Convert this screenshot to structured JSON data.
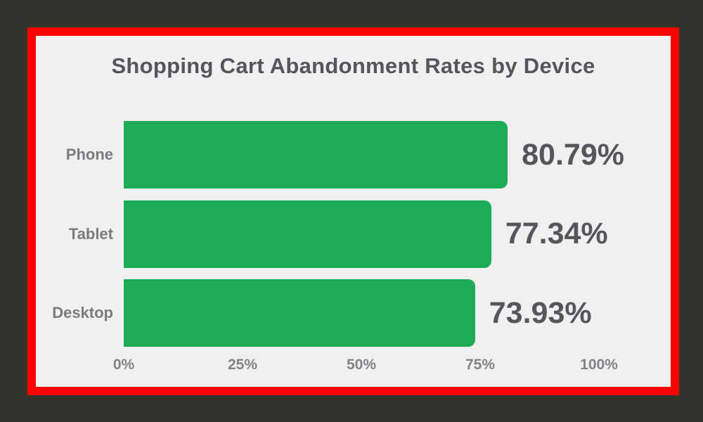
{
  "title": "Shopping Cart Abandonment Rates by Device",
  "colors": {
    "background": "#33332E",
    "frame": "#FE0000",
    "panel": "#F0F0F0",
    "bar": "#1DAC55",
    "title_text": "#54565B",
    "value_text": "#54565B",
    "category_text": "#7A7B7F",
    "axis_text": "#828387"
  },
  "chart_data": {
    "type": "bar",
    "orientation": "horizontal",
    "title": "Shopping Cart Abandonment Rates by Device",
    "categories": [
      "Phone",
      "Tablet",
      "Desktop"
    ],
    "values": [
      80.79,
      77.34,
      73.93
    ],
    "value_labels": [
      "80.79%",
      "77.34%",
      "73.93%"
    ],
    "x_ticks": [
      {
        "label": "0%",
        "value": 0
      },
      {
        "label": "25%",
        "value": 25
      },
      {
        "label": "50%",
        "value": 50
      },
      {
        "label": "75%",
        "value": 75
      },
      {
        "label": "100%",
        "value": 100
      }
    ],
    "xlim": [
      0,
      100
    ],
    "grid": false,
    "legend": false
  }
}
